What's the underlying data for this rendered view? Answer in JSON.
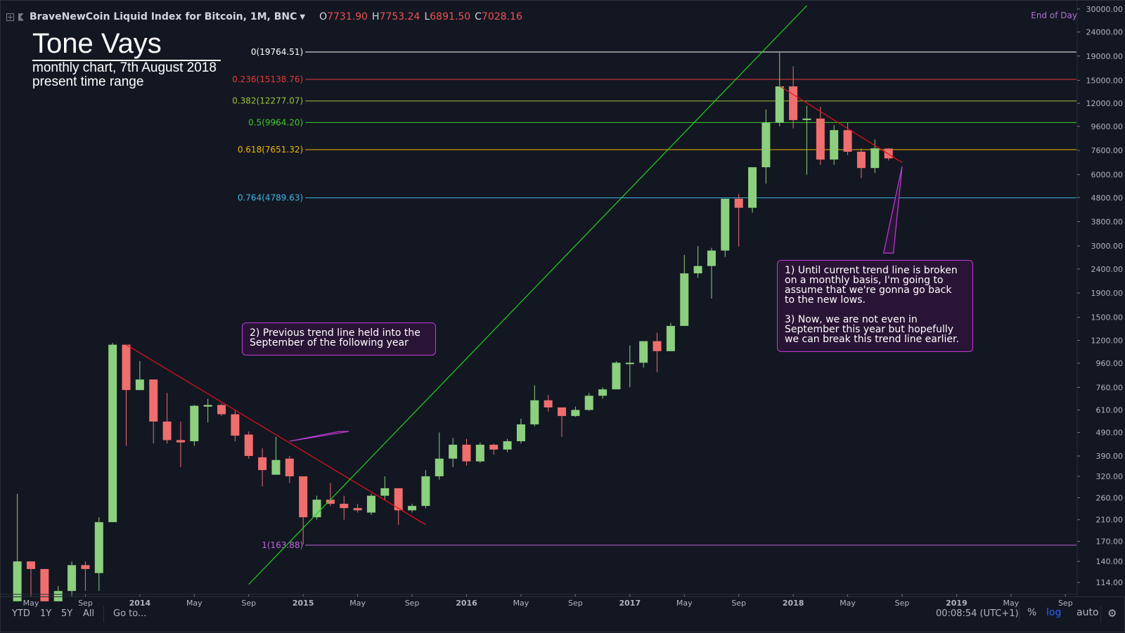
{
  "legend": {
    "title": "BraveNewCoin Liquid Index for Bitcoin, 1M, BNC",
    "open_label": "O",
    "open": "7731.90",
    "high_label": "H",
    "high": "7753.24",
    "low_label": "L",
    "low": "6891.50",
    "close_label": "C",
    "close": "7028.16",
    "end_of_day": "End of Day"
  },
  "author": {
    "name": "Tone Vays",
    "line1": "monthly chart, 7th August 2018",
    "line2": "present time range"
  },
  "callouts": {
    "left": "2) Previous trend line held into the\nSeptember of the following year",
    "right": "1) Until current trend line is broken\non a monthly basis, I'm going to\nassume that we're gonna go back\nto the new lows.\n\n3) Now, we are not even in\nSeptember this year but hopefully\nwe can break this trend line earlier."
  },
  "toolbar": {
    "ranges": [
      "YTD",
      "1Y",
      "5Y",
      "All"
    ],
    "goto": "Go to...",
    "clock": "00:08:54 (UTC+1)",
    "percent": "%",
    "log": "log",
    "auto": "auto"
  },
  "colors": {
    "up": "#8ccf7e",
    "down": "#ef6e6e",
    "bg": "#131722",
    "fib_0": "#ffffff",
    "fib_236": "#e53935",
    "fib_382": "#9cc43a",
    "fib_5": "#43c82b",
    "fib_618": "#f2b700",
    "fib_764": "#3fb4e6",
    "fib_1": "#c164e0",
    "trend_down": "#e8101e",
    "trend_up": "#1fd41f",
    "callout": "#c13cd6"
  },
  "chart_data": {
    "type": "candlestick",
    "scale": "log",
    "ylim": [
      100,
      30000
    ],
    "y_ticks": [
      "30000.00",
      "24000.00",
      "19000.00",
      "15000.00",
      "12000.00",
      "9600.00",
      "7600.00",
      "6000.00",
      "4800.00",
      "3800.00",
      "3000.00",
      "2400.00",
      "1900.00",
      "1500.00",
      "1200.00",
      "960.00",
      "760.00",
      "610.00",
      "490.00",
      "390.00",
      "320.00",
      "260.00",
      "210.00",
      "170.00",
      "140.00",
      "114.00"
    ],
    "x_ticks": [
      {
        "label": "May",
        "date": "2013-05"
      },
      {
        "label": "Sep",
        "date": "2013-09"
      },
      {
        "label": "2014",
        "date": "2014-01",
        "bold": true
      },
      {
        "label": "May",
        "date": "2014-05"
      },
      {
        "label": "Sep",
        "date": "2014-09"
      },
      {
        "label": "2015",
        "date": "2015-01",
        "bold": true
      },
      {
        "label": "May",
        "date": "2015-05"
      },
      {
        "label": "Sep",
        "date": "2015-09"
      },
      {
        "label": "2016",
        "date": "2016-01",
        "bold": true
      },
      {
        "label": "May",
        "date": "2016-05"
      },
      {
        "label": "Sep",
        "date": "2016-09"
      },
      {
        "label": "2017",
        "date": "2017-01",
        "bold": true
      },
      {
        "label": "May",
        "date": "2017-05"
      },
      {
        "label": "Sep",
        "date": "2017-09"
      },
      {
        "label": "2018",
        "date": "2018-01",
        "bold": true
      },
      {
        "label": "May",
        "date": "2018-05"
      },
      {
        "label": "Sep",
        "date": "2018-09"
      },
      {
        "label": "2019",
        "date": "2019-01",
        "bold": true
      },
      {
        "label": "May",
        "date": "2019-05"
      },
      {
        "label": "Sep",
        "date": "2019-09"
      }
    ],
    "candles": [
      {
        "date": "2013-04",
        "o": 95,
        "h": 270,
        "l": 60,
        "c": 140
      },
      {
        "date": "2013-05",
        "o": 140,
        "h": 140,
        "l": 100,
        "c": 130
      },
      {
        "date": "2013-06",
        "o": 130,
        "h": 130,
        "l": 90,
        "c": 95
      },
      {
        "date": "2013-07",
        "o": 95,
        "h": 110,
        "l": 70,
        "c": 105
      },
      {
        "date": "2013-08",
        "o": 105,
        "h": 140,
        "l": 100,
        "c": 135
      },
      {
        "date": "2013-09",
        "o": 135,
        "h": 140,
        "l": 105,
        "c": 130
      },
      {
        "date": "2013-10",
        "o": 125,
        "h": 215,
        "l": 105,
        "c": 205
      },
      {
        "date": "2013-11",
        "o": 205,
        "h": 1170,
        "l": 205,
        "c": 1150
      },
      {
        "date": "2013-12",
        "o": 1150,
        "h": 1150,
        "l": 430,
        "c": 740
      },
      {
        "date": "2014-01",
        "o": 740,
        "h": 980,
        "l": 740,
        "c": 820
      },
      {
        "date": "2014-02",
        "o": 820,
        "h": 820,
        "l": 440,
        "c": 545
      },
      {
        "date": "2014-03",
        "o": 545,
        "h": 720,
        "l": 440,
        "c": 455
      },
      {
        "date": "2014-04",
        "o": 455,
        "h": 545,
        "l": 350,
        "c": 445
      },
      {
        "date": "2014-05",
        "o": 450,
        "h": 640,
        "l": 430,
        "c": 635
      },
      {
        "date": "2014-06",
        "o": 630,
        "h": 680,
        "l": 540,
        "c": 640
      },
      {
        "date": "2014-07",
        "o": 640,
        "h": 650,
        "l": 575,
        "c": 585
      },
      {
        "date": "2014-08",
        "o": 585,
        "h": 610,
        "l": 450,
        "c": 475
      },
      {
        "date": "2014-09",
        "o": 480,
        "h": 495,
        "l": 380,
        "c": 390
      },
      {
        "date": "2014-10",
        "o": 385,
        "h": 420,
        "l": 290,
        "c": 340
      },
      {
        "date": "2014-11",
        "o": 325,
        "h": 470,
        "l": 330,
        "c": 375
      },
      {
        "date": "2014-12",
        "o": 380,
        "h": 390,
        "l": 300,
        "c": 320
      },
      {
        "date": "2015-01",
        "o": 320,
        "h": 320,
        "l": 165,
        "c": 215
      },
      {
        "date": "2015-02",
        "o": 215,
        "h": 265,
        "l": 210,
        "c": 255
      },
      {
        "date": "2015-03",
        "o": 255,
        "h": 300,
        "l": 240,
        "c": 245
      },
      {
        "date": "2015-04",
        "o": 245,
        "h": 265,
        "l": 210,
        "c": 235
      },
      {
        "date": "2015-05",
        "o": 235,
        "h": 245,
        "l": 225,
        "c": 230
      },
      {
        "date": "2015-06",
        "o": 225,
        "h": 270,
        "l": 220,
        "c": 265
      },
      {
        "date": "2015-07",
        "o": 265,
        "h": 320,
        "l": 255,
        "c": 285
      },
      {
        "date": "2015-08",
        "o": 285,
        "h": 285,
        "l": 200,
        "c": 230
      },
      {
        "date": "2015-09",
        "o": 230,
        "h": 245,
        "l": 225,
        "c": 240
      },
      {
        "date": "2015-10",
        "o": 240,
        "h": 340,
        "l": 235,
        "c": 320
      },
      {
        "date": "2015-11",
        "o": 320,
        "h": 490,
        "l": 310,
        "c": 380
      },
      {
        "date": "2015-12",
        "o": 380,
        "h": 465,
        "l": 350,
        "c": 435
      },
      {
        "date": "2016-01",
        "o": 435,
        "h": 460,
        "l": 355,
        "c": 370
      },
      {
        "date": "2016-02",
        "o": 370,
        "h": 445,
        "l": 365,
        "c": 435
      },
      {
        "date": "2016-03",
        "o": 435,
        "h": 440,
        "l": 395,
        "c": 415
      },
      {
        "date": "2016-04",
        "o": 415,
        "h": 460,
        "l": 405,
        "c": 450
      },
      {
        "date": "2016-05",
        "o": 450,
        "h": 560,
        "l": 440,
        "c": 530
      },
      {
        "date": "2016-06",
        "o": 530,
        "h": 775,
        "l": 520,
        "c": 670
      },
      {
        "date": "2016-07",
        "o": 670,
        "h": 705,
        "l": 600,
        "c": 625
      },
      {
        "date": "2016-08",
        "o": 625,
        "h": 625,
        "l": 470,
        "c": 575
      },
      {
        "date": "2016-09",
        "o": 575,
        "h": 630,
        "l": 570,
        "c": 610
      },
      {
        "date": "2016-10",
        "o": 610,
        "h": 720,
        "l": 605,
        "c": 700
      },
      {
        "date": "2016-11",
        "o": 700,
        "h": 760,
        "l": 680,
        "c": 745
      },
      {
        "date": "2016-12",
        "o": 745,
        "h": 980,
        "l": 745,
        "c": 965
      },
      {
        "date": "2017-01",
        "o": 965,
        "h": 1140,
        "l": 760,
        "c": 965
      },
      {
        "date": "2017-02",
        "o": 965,
        "h": 1190,
        "l": 920,
        "c": 1190
      },
      {
        "date": "2017-03",
        "o": 1190,
        "h": 1290,
        "l": 880,
        "c": 1080
      },
      {
        "date": "2017-04",
        "o": 1080,
        "h": 1420,
        "l": 1080,
        "c": 1380
      },
      {
        "date": "2017-05",
        "o": 1380,
        "h": 2750,
        "l": 1380,
        "c": 2300
      },
      {
        "date": "2017-06",
        "o": 2300,
        "h": 3000,
        "l": 2200,
        "c": 2470
      },
      {
        "date": "2017-07",
        "o": 2470,
        "h": 2950,
        "l": 1800,
        "c": 2870
      },
      {
        "date": "2017-08",
        "o": 2870,
        "h": 4700,
        "l": 2700,
        "c": 4750
      },
      {
        "date": "2017-09",
        "o": 4750,
        "h": 4970,
        "l": 2980,
        "c": 4350
      },
      {
        "date": "2017-10",
        "o": 4350,
        "h": 6450,
        "l": 4150,
        "c": 6450
      },
      {
        "date": "2017-11",
        "o": 6450,
        "h": 11300,
        "l": 5500,
        "c": 9950
      },
      {
        "date": "2017-12",
        "o": 9950,
        "h": 19764,
        "l": 9600,
        "c": 14150
      },
      {
        "date": "2018-01",
        "o": 14150,
        "h": 17200,
        "l": 9400,
        "c": 10200
      },
      {
        "date": "2018-02",
        "o": 10200,
        "h": 11700,
        "l": 6000,
        "c": 10350
      },
      {
        "date": "2018-03",
        "o": 10350,
        "h": 11600,
        "l": 6600,
        "c": 6950
      },
      {
        "date": "2018-04",
        "o": 6950,
        "h": 9700,
        "l": 6600,
        "c": 9250
      },
      {
        "date": "2018-05",
        "o": 9250,
        "h": 9950,
        "l": 7250,
        "c": 7500
      },
      {
        "date": "2018-06",
        "o": 7500,
        "h": 7750,
        "l": 5800,
        "c": 6400
      },
      {
        "date": "2018-07",
        "o": 6400,
        "h": 8450,
        "l": 6100,
        "c": 7750
      },
      {
        "date": "2018-08",
        "o": 7731.9,
        "h": 7753.24,
        "l": 6891.5,
        "c": 7028.16
      }
    ],
    "fib_levels": [
      {
        "label": "0(19764.51)",
        "value": 19764.51,
        "color": "#ffffff"
      },
      {
        "label": "0.236(15138.76)",
        "value": 15138.76,
        "color": "#e53935"
      },
      {
        "label": "0.382(12277.07)",
        "value": 12277.07,
        "color": "#9cc43a"
      },
      {
        "label": "0.5(9964.20)",
        "value": 9964.2,
        "color": "#43c82b"
      },
      {
        "label": "0.618(7651.32)",
        "value": 7651.32,
        "color": "#f2b700"
      },
      {
        "label": "0.764(4789.63)",
        "value": 4789.63,
        "color": "#3fb4e6"
      },
      {
        "label": "1(163.88)",
        "value": 163.88,
        "color": "#c164e0"
      }
    ],
    "fib_start_date": "2015-01",
    "trend_lines": [
      {
        "kind": "down",
        "from": {
          "date": "2013-12",
          "value": 1150
        },
        "to": {
          "date": "2015-10",
          "value": 200
        }
      },
      {
        "kind": "up",
        "from": {
          "date": "2014-09",
          "value": 112
        },
        "to": {
          "date": "2018-02",
          "value": 31000
        }
      },
      {
        "kind": "down",
        "from": {
          "date": "2017-12",
          "value": 14200
        },
        "to": {
          "date": "2018-09",
          "value": 6750
        }
      }
    ],
    "callout_pointers": [
      {
        "from": {
          "date": "2015-04",
          "value": 495
        },
        "to": {
          "date": "2014-12",
          "value": 450
        }
      },
      {
        "from": {
          "date": "2018-08",
          "value": 2800
        },
        "to": {
          "date": "2018-09",
          "value": 6500
        }
      }
    ]
  }
}
